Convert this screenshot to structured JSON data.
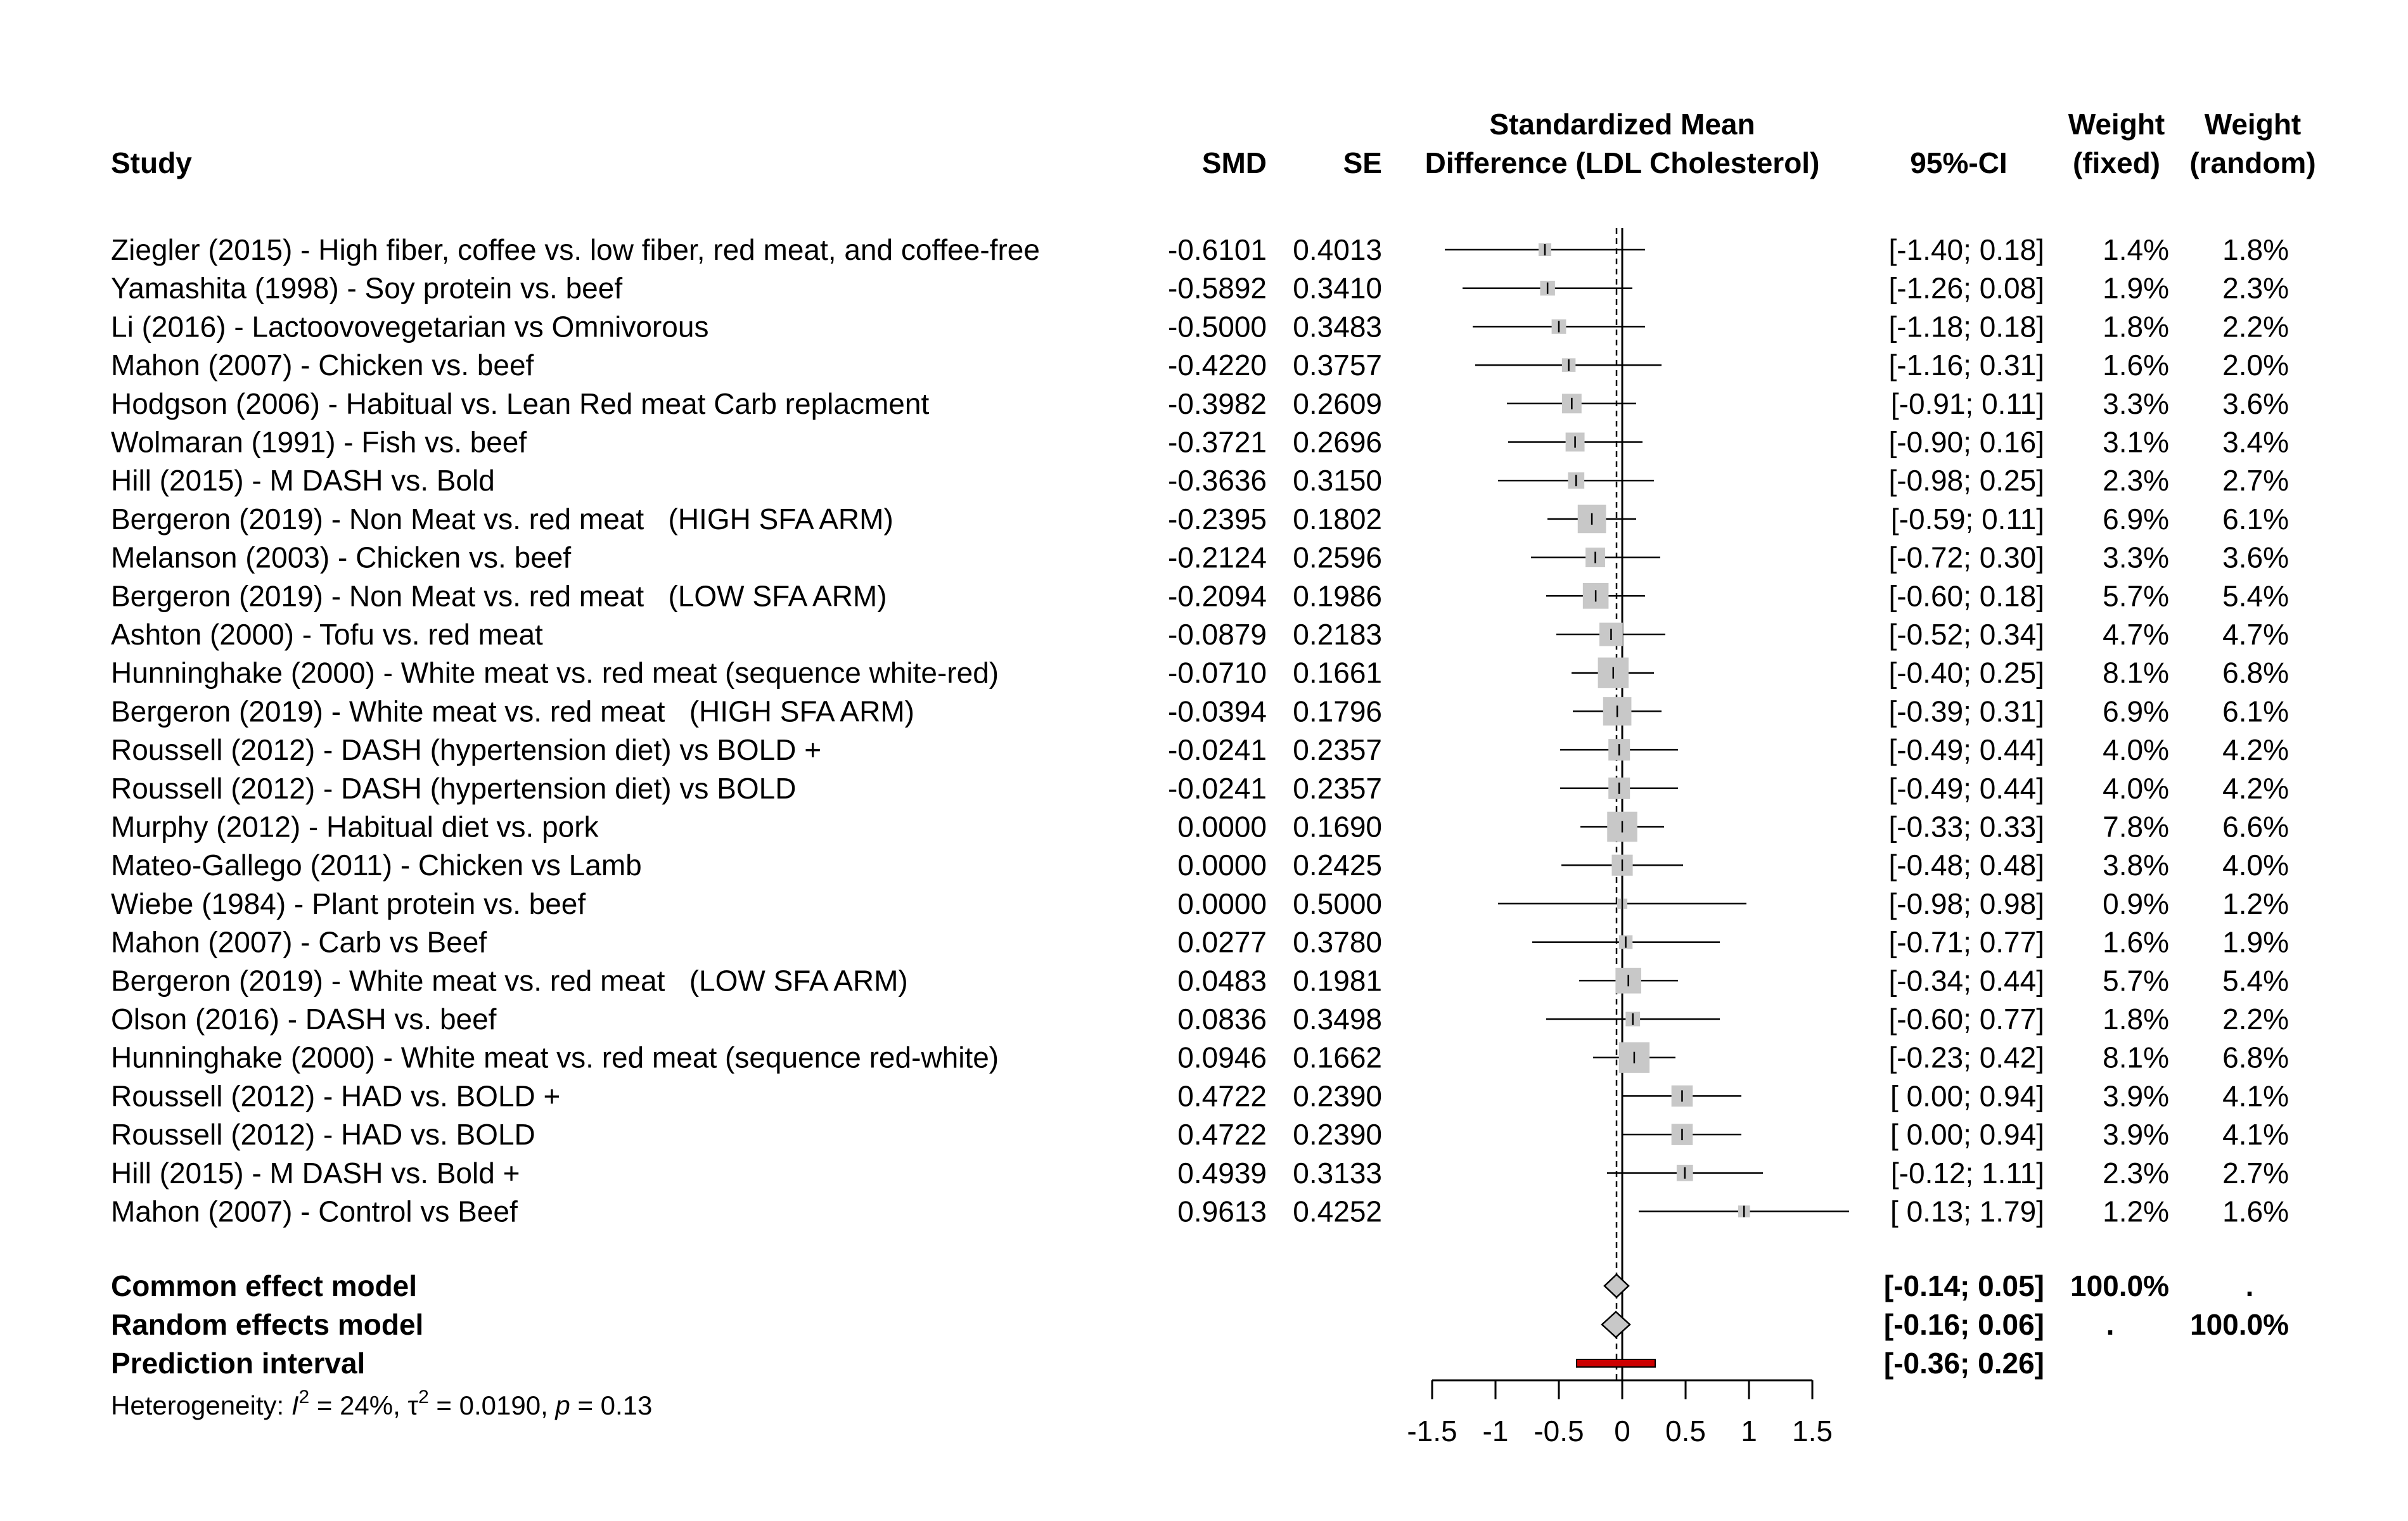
{
  "chart_data": {
    "type": "forest",
    "headers": {
      "study": "Study",
      "smd": "SMD",
      "se": "SE",
      "plot_line1": "Standardized Mean",
      "plot_line2": "Difference (LDL Cholesterol)",
      "ci": "95%-CI",
      "wf_line1": "Weight",
      "wf_line2": "(fixed)",
      "wr_line1": "Weight",
      "wr_line2": "(random)"
    },
    "studies": [
      {
        "study": "Ziegler (2015) - High fiber, coffee vs. low fiber, red meat, and coffee-free",
        "smd": -0.6101,
        "smd_text": "-0.6101",
        "se_text": "0.4013",
        "ci": [
          -1.4,
          0.18
        ],
        "ci_text": "[-1.40; 0.18]",
        "w_fixed": 1.4,
        "w_fixed_text": "1.4%",
        "w_random_text": "1.8%"
      },
      {
        "study": "Yamashita (1998) - Soy protein vs. beef",
        "smd": -0.5892,
        "smd_text": "-0.5892",
        "se_text": "0.3410",
        "ci": [
          -1.26,
          0.08
        ],
        "ci_text": "[-1.26; 0.08]",
        "w_fixed": 1.9,
        "w_fixed_text": "1.9%",
        "w_random_text": "2.3%"
      },
      {
        "study": "Li (2016) - Lactoovovegetarian vs Omnivorous",
        "smd": -0.5,
        "smd_text": "-0.5000",
        "se_text": "0.3483",
        "ci": [
          -1.18,
          0.18
        ],
        "ci_text": "[-1.18; 0.18]",
        "w_fixed": 1.8,
        "w_fixed_text": "1.8%",
        "w_random_text": "2.2%"
      },
      {
        "study": "Mahon (2007) - Chicken vs. beef",
        "smd": -0.422,
        "smd_text": "-0.4220",
        "se_text": "0.3757",
        "ci": [
          -1.16,
          0.31
        ],
        "ci_text": "[-1.16; 0.31]",
        "w_fixed": 1.6,
        "w_fixed_text": "1.6%",
        "w_random_text": "2.0%"
      },
      {
        "study": "Hodgson (2006) - Habitual vs. Lean Red meat Carb replacment",
        "smd": -0.3982,
        "smd_text": "-0.3982",
        "se_text": "0.2609",
        "ci": [
          -0.91,
          0.11
        ],
        "ci_text": "[-0.91; 0.11]",
        "w_fixed": 3.3,
        "w_fixed_text": "3.3%",
        "w_random_text": "3.6%"
      },
      {
        "study": "Wolmaran (1991) - Fish vs. beef",
        "smd": -0.3721,
        "smd_text": "-0.3721",
        "se_text": "0.2696",
        "ci": [
          -0.9,
          0.16
        ],
        "ci_text": "[-0.90; 0.16]",
        "w_fixed": 3.1,
        "w_fixed_text": "3.1%",
        "w_random_text": "3.4%"
      },
      {
        "study": "Hill (2015) - M DASH vs. Bold",
        "smd": -0.3636,
        "smd_text": "-0.3636",
        "se_text": "0.3150",
        "ci": [
          -0.98,
          0.25
        ],
        "ci_text": "[-0.98; 0.25]",
        "w_fixed": 2.3,
        "w_fixed_text": "2.3%",
        "w_random_text": "2.7%"
      },
      {
        "study": "Bergeron (2019) - Non Meat vs. red meat   (HIGH SFA ARM)",
        "smd": -0.2395,
        "smd_text": "-0.2395",
        "se_text": "0.1802",
        "ci": [
          -0.59,
          0.11
        ],
        "ci_text": "[-0.59; 0.11]",
        "w_fixed": 6.9,
        "w_fixed_text": "6.9%",
        "w_random_text": "6.1%"
      },
      {
        "study": "Melanson (2003) - Chicken vs. beef",
        "smd": -0.2124,
        "smd_text": "-0.2124",
        "se_text": "0.2596",
        "ci": [
          -0.72,
          0.3
        ],
        "ci_text": "[-0.72; 0.30]",
        "w_fixed": 3.3,
        "w_fixed_text": "3.3%",
        "w_random_text": "3.6%"
      },
      {
        "study": "Bergeron (2019) - Non Meat vs. red meat   (LOW SFA ARM)",
        "smd": -0.2094,
        "smd_text": "-0.2094",
        "se_text": "0.1986",
        "ci": [
          -0.6,
          0.18
        ],
        "ci_text": "[-0.60; 0.18]",
        "w_fixed": 5.7,
        "w_fixed_text": "5.7%",
        "w_random_text": "5.4%"
      },
      {
        "study": "Ashton (2000) - Tofu vs. red meat",
        "smd": -0.0879,
        "smd_text": "-0.0879",
        "se_text": "0.2183",
        "ci": [
          -0.52,
          0.34
        ],
        "ci_text": "[-0.52; 0.34]",
        "w_fixed": 4.7,
        "w_fixed_text": "4.7%",
        "w_random_text": "4.7%"
      },
      {
        "study": "Hunninghake (2000) - White meat vs. red meat (sequence white-red)",
        "smd": -0.071,
        "smd_text": "-0.0710",
        "se_text": "0.1661",
        "ci": [
          -0.4,
          0.25
        ],
        "ci_text": "[-0.40; 0.25]",
        "w_fixed": 8.1,
        "w_fixed_text": "8.1%",
        "w_random_text": "6.8%"
      },
      {
        "study": "Bergeron (2019) - White meat vs. red meat   (HIGH SFA ARM)",
        "smd": -0.0394,
        "smd_text": "-0.0394",
        "se_text": "0.1796",
        "ci": [
          -0.39,
          0.31
        ],
        "ci_text": "[-0.39; 0.31]",
        "w_fixed": 6.9,
        "w_fixed_text": "6.9%",
        "w_random_text": "6.1%"
      },
      {
        "study": "Roussell (2012) - DASH (hypertension diet) vs BOLD +",
        "smd": -0.0241,
        "smd_text": "-0.0241",
        "se_text": "0.2357",
        "ci": [
          -0.49,
          0.44
        ],
        "ci_text": "[-0.49; 0.44]",
        "w_fixed": 4.0,
        "w_fixed_text": "4.0%",
        "w_random_text": "4.2%"
      },
      {
        "study": "Roussell (2012) - DASH (hypertension diet) vs BOLD",
        "smd": -0.0241,
        "smd_text": "-0.0241",
        "se_text": "0.2357",
        "ci": [
          -0.49,
          0.44
        ],
        "ci_text": "[-0.49; 0.44]",
        "w_fixed": 4.0,
        "w_fixed_text": "4.0%",
        "w_random_text": "4.2%"
      },
      {
        "study": "Murphy (2012) - Habitual diet vs. pork",
        "smd": 0.0,
        "smd_text": "0.0000",
        "se_text": "0.1690",
        "ci": [
          -0.33,
          0.33
        ],
        "ci_text": "[-0.33; 0.33]",
        "w_fixed": 7.8,
        "w_fixed_text": "7.8%",
        "w_random_text": "6.6%"
      },
      {
        "study": "Mateo-Gallego (2011) - Chicken vs Lamb",
        "smd": 0.0,
        "smd_text": "0.0000",
        "se_text": "0.2425",
        "ci": [
          -0.48,
          0.48
        ],
        "ci_text": "[-0.48; 0.48]",
        "w_fixed": 3.8,
        "w_fixed_text": "3.8%",
        "w_random_text": "4.0%"
      },
      {
        "study": "Wiebe (1984) - Plant protein vs. beef",
        "smd": 0.0,
        "smd_text": "0.0000",
        "se_text": "0.5000",
        "ci": [
          -0.98,
          0.98
        ],
        "ci_text": "[-0.98; 0.98]",
        "w_fixed": 0.9,
        "w_fixed_text": "0.9%",
        "w_random_text": "1.2%"
      },
      {
        "study": "Mahon (2007) - Carb vs Beef",
        "smd": 0.0277,
        "smd_text": "0.0277",
        "se_text": "0.3780",
        "ci": [
          -0.71,
          0.77
        ],
        "ci_text": "[-0.71; 0.77]",
        "w_fixed": 1.6,
        "w_fixed_text": "1.6%",
        "w_random_text": "1.9%"
      },
      {
        "study": "Bergeron (2019) - White meat vs. red meat   (LOW SFA ARM)",
        "smd": 0.0483,
        "smd_text": "0.0483",
        "se_text": "0.1981",
        "ci": [
          -0.34,
          0.44
        ],
        "ci_text": "[-0.34; 0.44]",
        "w_fixed": 5.7,
        "w_fixed_text": "5.7%",
        "w_random_text": "5.4%"
      },
      {
        "study": "Olson (2016) - DASH vs. beef",
        "smd": 0.0836,
        "smd_text": "0.0836",
        "se_text": "0.3498",
        "ci": [
          -0.6,
          0.77
        ],
        "ci_text": "[-0.60; 0.77]",
        "w_fixed": 1.8,
        "w_fixed_text": "1.8%",
        "w_random_text": "2.2%"
      },
      {
        "study": "Hunninghake (2000) - White meat vs. red meat (sequence red-white)",
        "smd": 0.0946,
        "smd_text": "0.0946",
        "se_text": "0.1662",
        "ci": [
          -0.23,
          0.42
        ],
        "ci_text": "[-0.23; 0.42]",
        "w_fixed": 8.1,
        "w_fixed_text": "8.1%",
        "w_random_text": "6.8%"
      },
      {
        "study": "Roussell (2012) - HAD vs. BOLD +",
        "smd": 0.4722,
        "smd_text": "0.4722",
        "se_text": "0.2390",
        "ci": [
          0.0,
          0.94
        ],
        "ci_text": "[ 0.00; 0.94]",
        "w_fixed": 3.9,
        "w_fixed_text": "3.9%",
        "w_random_text": "4.1%"
      },
      {
        "study": "Roussell (2012) - HAD vs. BOLD",
        "smd": 0.4722,
        "smd_text": "0.4722",
        "se_text": "0.2390",
        "ci": [
          0.0,
          0.94
        ],
        "ci_text": "[ 0.00; 0.94]",
        "w_fixed": 3.9,
        "w_fixed_text": "3.9%",
        "w_random_text": "4.1%"
      },
      {
        "study": "Hill (2015) - M DASH vs. Bold +",
        "smd": 0.4939,
        "smd_text": "0.4939",
        "se_text": "0.3133",
        "ci": [
          -0.12,
          1.11
        ],
        "ci_text": "[-0.12; 1.11]",
        "w_fixed": 2.3,
        "w_fixed_text": "2.3%",
        "w_random_text": "2.7%"
      },
      {
        "study": "Mahon (2007) - Control vs Beef",
        "smd": 0.9613,
        "smd_text": "0.9613",
        "se_text": "0.4252",
        "ci": [
          0.13,
          1.79
        ],
        "ci_text": "[ 0.13; 1.79]",
        "w_fixed": 1.2,
        "w_fixed_text": "1.2%",
        "w_random_text": "1.6%"
      }
    ],
    "common": {
      "label": "Common effect model",
      "est": -0.045,
      "ci": [
        -0.14,
        0.05
      ],
      "ci_text": "[-0.14; 0.05]",
      "w_fixed_text": "100.0%",
      "w_random_text": "."
    },
    "random": {
      "label": "Random effects model",
      "est": -0.05,
      "ci": [
        -0.16,
        0.06
      ],
      "ci_text": "[-0.16; 0.06]",
      "w_fixed_text": ".",
      "w_random_text": "100.0%"
    },
    "prediction": {
      "label": "Prediction interval",
      "ci": [
        -0.36,
        0.26
      ],
      "ci_text": "[-0.36; 0.26]",
      "color": "#cc0000"
    },
    "heterogeneity": {
      "prefix": "Heterogeneity: ",
      "i2_symbol": "I",
      "i2_value": " = 24%, ",
      "tau_symbol": "τ",
      "tau_value": " = 0.0190, ",
      "p_symbol": "p",
      "p_value": " = 0.13"
    },
    "axis": {
      "xlim": [
        -1.5,
        1.5
      ],
      "ticks": [
        -1.5,
        -1,
        -0.5,
        0,
        0.5,
        1,
        1.5
      ],
      "tick_labels": [
        "-1.5",
        "-1",
        "-0.5",
        "0",
        "0.5",
        "1",
        "1.5"
      ]
    },
    "colors": {
      "square": "#c8c8c8",
      "diamond": "#c8c8c8",
      "prediction": "#cc0000",
      "line": "#000000"
    }
  }
}
